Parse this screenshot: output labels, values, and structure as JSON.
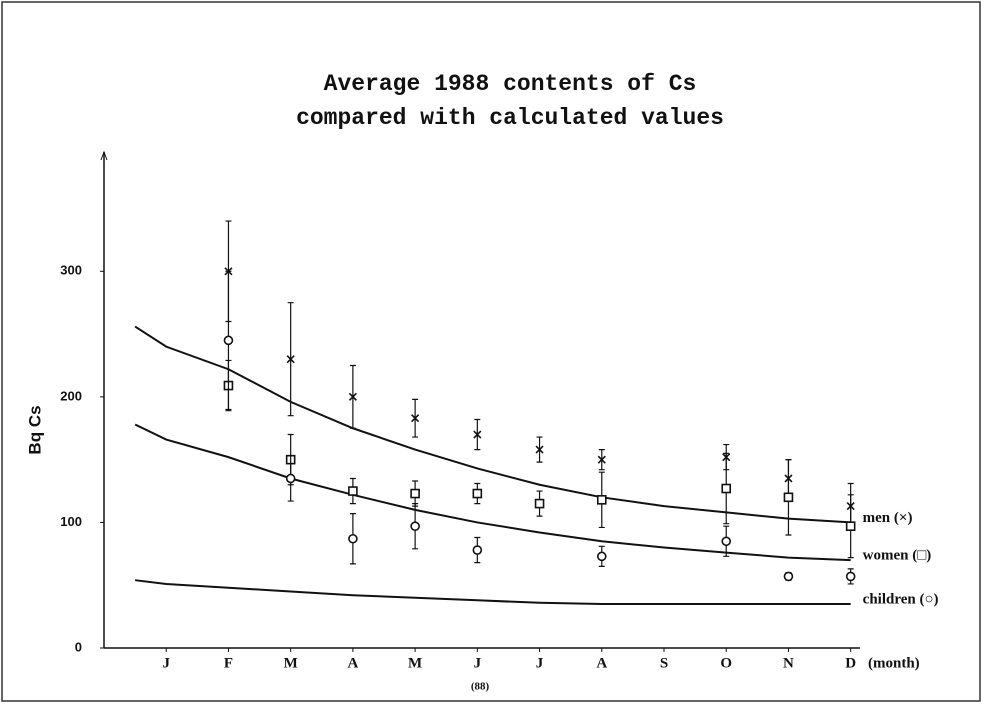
{
  "chart_data": {
    "type": "scatter-errorbar",
    "title": [
      "Average 1988 contents of Cs",
      "compared with calculated values"
    ],
    "y_label": "Bq Cs",
    "x_label": "(month)",
    "x_note": "(88)",
    "xlim": [
      0,
      12.15
    ],
    "ylim": [
      0,
      395
    ],
    "xticks": [
      {
        "value": 1,
        "label": "J"
      },
      {
        "value": 2,
        "label": "F"
      },
      {
        "value": 3,
        "label": "M"
      },
      {
        "value": 4,
        "label": "A"
      },
      {
        "value": 5,
        "label": "M"
      },
      {
        "value": 6,
        "label": "J"
      },
      {
        "value": 7,
        "label": "J"
      },
      {
        "value": 8,
        "label": "A"
      },
      {
        "value": 9,
        "label": "S"
      },
      {
        "value": 10,
        "label": "O"
      },
      {
        "value": 11,
        "label": "N"
      },
      {
        "value": 12,
        "label": "D"
      }
    ],
    "yticks": [
      0,
      100,
      200,
      300
    ],
    "x": [
      2,
      3,
      4,
      5,
      6,
      7,
      8,
      10,
      11,
      12
    ],
    "curve_x": [
      0.5,
      1,
      2,
      3,
      4,
      5,
      6,
      7,
      8,
      9,
      10,
      11,
      12
    ],
    "color": "#111111",
    "series": [
      {
        "name": "men (×)",
        "marker": "cross",
        "values": [
          300,
          230,
          200,
          183,
          170,
          158,
          150,
          152,
          135,
          113
        ],
        "errors": [
          40,
          45,
          25,
          15,
          12,
          10,
          8,
          10,
          15,
          18
        ],
        "curve": [
          256,
          240,
          222,
          196,
          175,
          158,
          143,
          130,
          120,
          113,
          108,
          103,
          100
        ]
      },
      {
        "name": "women (□)",
        "marker": "square",
        "values": [
          209,
          150,
          125,
          123,
          123,
          115,
          118,
          127,
          120,
          97
        ],
        "errors": [
          20,
          20,
          10,
          10,
          8,
          10,
          22,
          28,
          30,
          25
        ],
        "curve": [
          178,
          166,
          152,
          135,
          122,
          110,
          100,
          92,
          85,
          80,
          76,
          72,
          70
        ]
      },
      {
        "name": "children (○)",
        "marker": "circle",
        "values": [
          245,
          135,
          87,
          97,
          78,
          null,
          73,
          85,
          57,
          57
        ],
        "errors": [
          55,
          18,
          20,
          18,
          10,
          null,
          8,
          12,
          3,
          6
        ],
        "curve": [
          54,
          51,
          48,
          45,
          42,
          40,
          38,
          36,
          35,
          35,
          35,
          35,
          35
        ]
      }
    ]
  }
}
